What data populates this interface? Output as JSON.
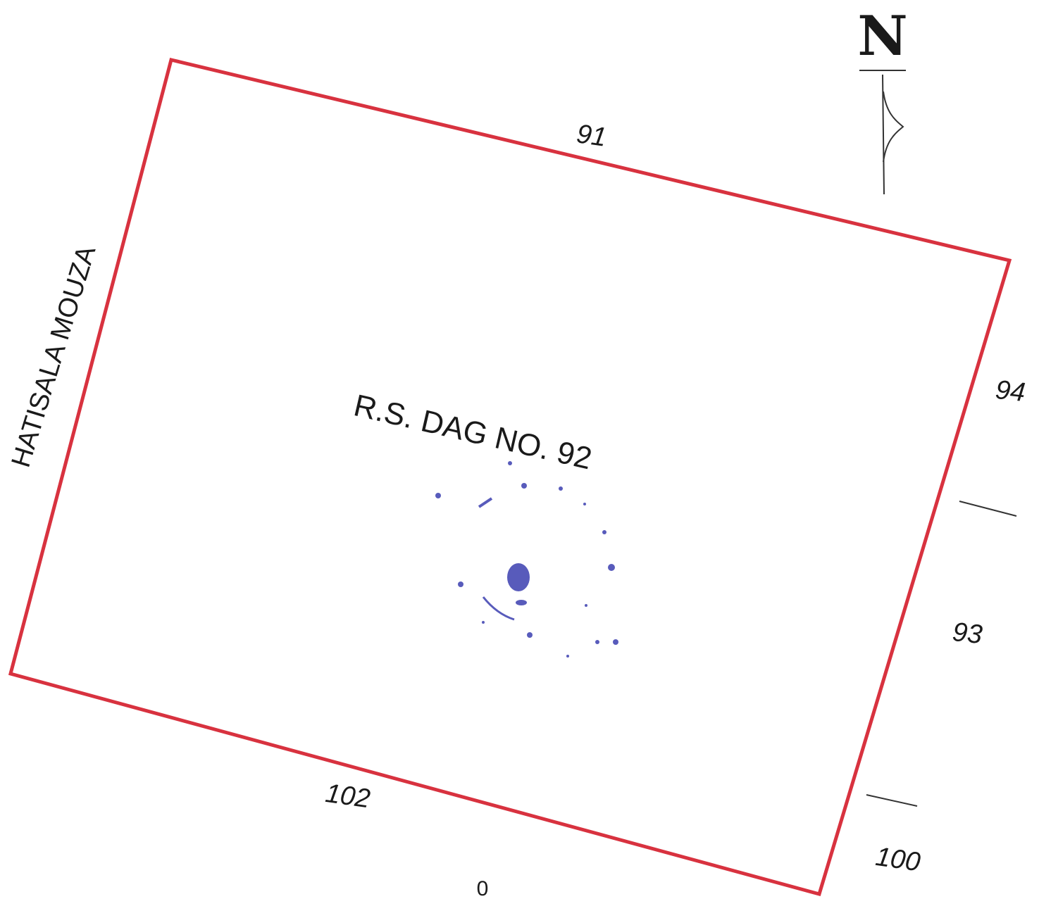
{
  "colors": {
    "boundary": "#d8323f",
    "text": "#1a1a1a",
    "stamp": "#3b3fb0",
    "tick": "#333333"
  },
  "north_arrow": {
    "letter": "N",
    "icon": "north-arrow-icon"
  },
  "plot": {
    "label": "R.S. DAG NO. 92"
  },
  "adjacent": {
    "north": "91",
    "east_upper": "94",
    "east_middle": "93",
    "southeast": "100",
    "south": "102",
    "west": "HATISALA MOUZA"
  },
  "bottom_mark": "0",
  "stamp": {
    "icon": "seal-stamp-icon"
  }
}
